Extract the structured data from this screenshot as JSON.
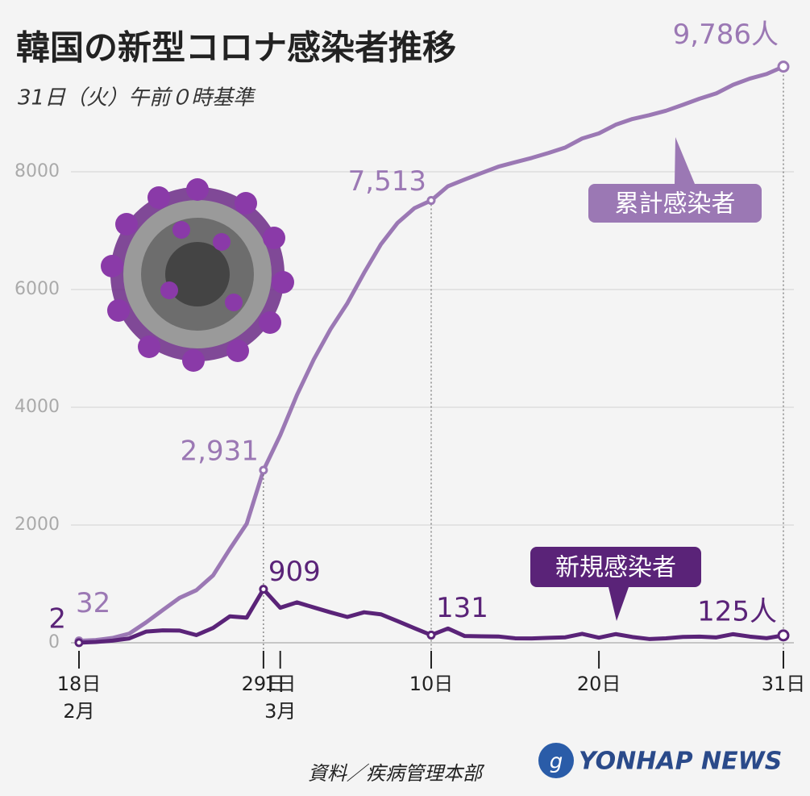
{
  "chart_data": {
    "type": "line",
    "title": "韓国の新型コロナ感染者推移",
    "subtitle": "31日（火）午前０時基準",
    "source": "資料／疾病管理本部",
    "logo": "YONHAP NEWS",
    "categories": [
      "18日\n2月",
      null,
      null,
      null,
      null,
      null,
      null,
      null,
      null,
      null,
      null,
      "29日",
      "1日\n3月",
      null,
      null,
      null,
      null,
      null,
      null,
      null,
      null,
      "10日",
      null,
      null,
      null,
      null,
      null,
      null,
      null,
      null,
      null,
      "20日",
      null,
      null,
      null,
      null,
      null,
      null,
      null,
      null,
      null,
      null,
      "31日"
    ],
    "ylim": [
      0,
      10000
    ],
    "yticks": [
      0,
      2000,
      4000,
      6000,
      8000
    ],
    "grid": true,
    "series": [
      {
        "name": "累計感染者",
        "color": "#9b78b4",
        "values": [
          32,
          46,
          82,
          156,
          346,
          556,
          763,
          893,
          1146,
          1595,
          2022,
          2931,
          3526,
          4212,
          4812,
          5328,
          5766,
          6284,
          6767,
          7134,
          7382,
          7513,
          7755,
          7869,
          7979,
          8086,
          8162,
          8236,
          8320,
          8413,
          8565,
          8652,
          8799,
          8897,
          8961,
          9037,
          9137,
          9241,
          9332,
          9478,
          9583,
          9661,
          9786
        ],
        "value_labels": [
          "32",
          null,
          null,
          null,
          null,
          null,
          null,
          null,
          null,
          null,
          null,
          "2,931",
          null,
          null,
          null,
          null,
          null,
          null,
          null,
          null,
          null,
          "7,513",
          null,
          null,
          null,
          null,
          null,
          null,
          null,
          null,
          null,
          null,
          null,
          null,
          null,
          null,
          null,
          null,
          null,
          null,
          null,
          null,
          "9,786人"
        ]
      },
      {
        "name": "新規感染者",
        "color": "#5a2378",
        "values": [
          2,
          14,
          36,
          74,
          190,
          210,
          207,
          130,
          253,
          449,
          427,
          909,
          595,
          686,
          600,
          516,
          438,
          518,
          483,
          367,
          248,
          131,
          242,
          114,
          110,
          107,
          76,
          74,
          84,
          93,
          152,
          87,
          147,
          98,
          64,
          76,
          100,
          104,
          91,
          146,
          105,
          78,
          125
        ],
        "value_labels": [
          "2",
          null,
          null,
          null,
          null,
          null,
          null,
          null,
          null,
          null,
          null,
          "909",
          null,
          null,
          null,
          null,
          null,
          null,
          null,
          null,
          null,
          "131",
          null,
          null,
          null,
          null,
          null,
          null,
          null,
          null,
          null,
          null,
          null,
          null,
          null,
          null,
          null,
          null,
          null,
          null,
          null,
          null,
          "125人"
        ]
      }
    ]
  }
}
